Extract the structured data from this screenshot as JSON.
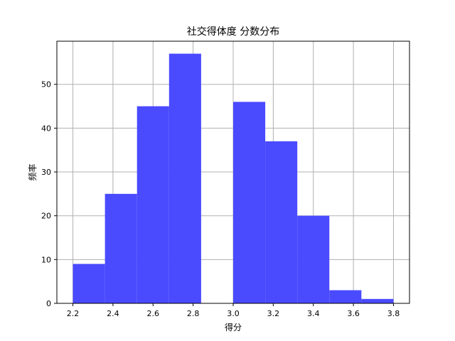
{
  "chart_data": {
    "type": "bar",
    "title": "社交得体度 分数分布",
    "xlabel": "得分",
    "ylabel": "频率",
    "bins": [
      {
        "start": 2.2,
        "end": 2.36,
        "count": 9
      },
      {
        "start": 2.36,
        "end": 2.52,
        "count": 25
      },
      {
        "start": 2.52,
        "end": 2.68,
        "count": 45
      },
      {
        "start": 2.68,
        "end": 2.84,
        "count": 57
      },
      {
        "start": 2.84,
        "end": 3.0,
        "count": 0
      },
      {
        "start": 3.0,
        "end": 3.16,
        "count": 46
      },
      {
        "start": 3.16,
        "end": 3.32,
        "count": 37
      },
      {
        "start": 3.32,
        "end": 3.48,
        "count": 20
      },
      {
        "start": 3.48,
        "end": 3.64,
        "count": 3
      },
      {
        "start": 3.64,
        "end": 3.8,
        "count": 1
      }
    ],
    "xlim": [
      2.12,
      3.88
    ],
    "ylim": [
      0,
      59.85
    ],
    "xticks": [
      2.2,
      2.4,
      2.6,
      2.8,
      3.0,
      3.2,
      3.4,
      3.6,
      3.8
    ],
    "xtick_labels": [
      "2.2",
      "2.4",
      "2.6",
      "2.8",
      "3.0",
      "3.2",
      "3.4",
      "3.6",
      "3.8"
    ],
    "yticks": [
      0,
      10,
      20,
      30,
      40,
      50
    ],
    "ytick_labels": [
      "0",
      "10",
      "20",
      "30",
      "40",
      "50"
    ],
    "grid": true,
    "bar_color": "#4a4aff",
    "grid_color": "#b0b0b0"
  }
}
